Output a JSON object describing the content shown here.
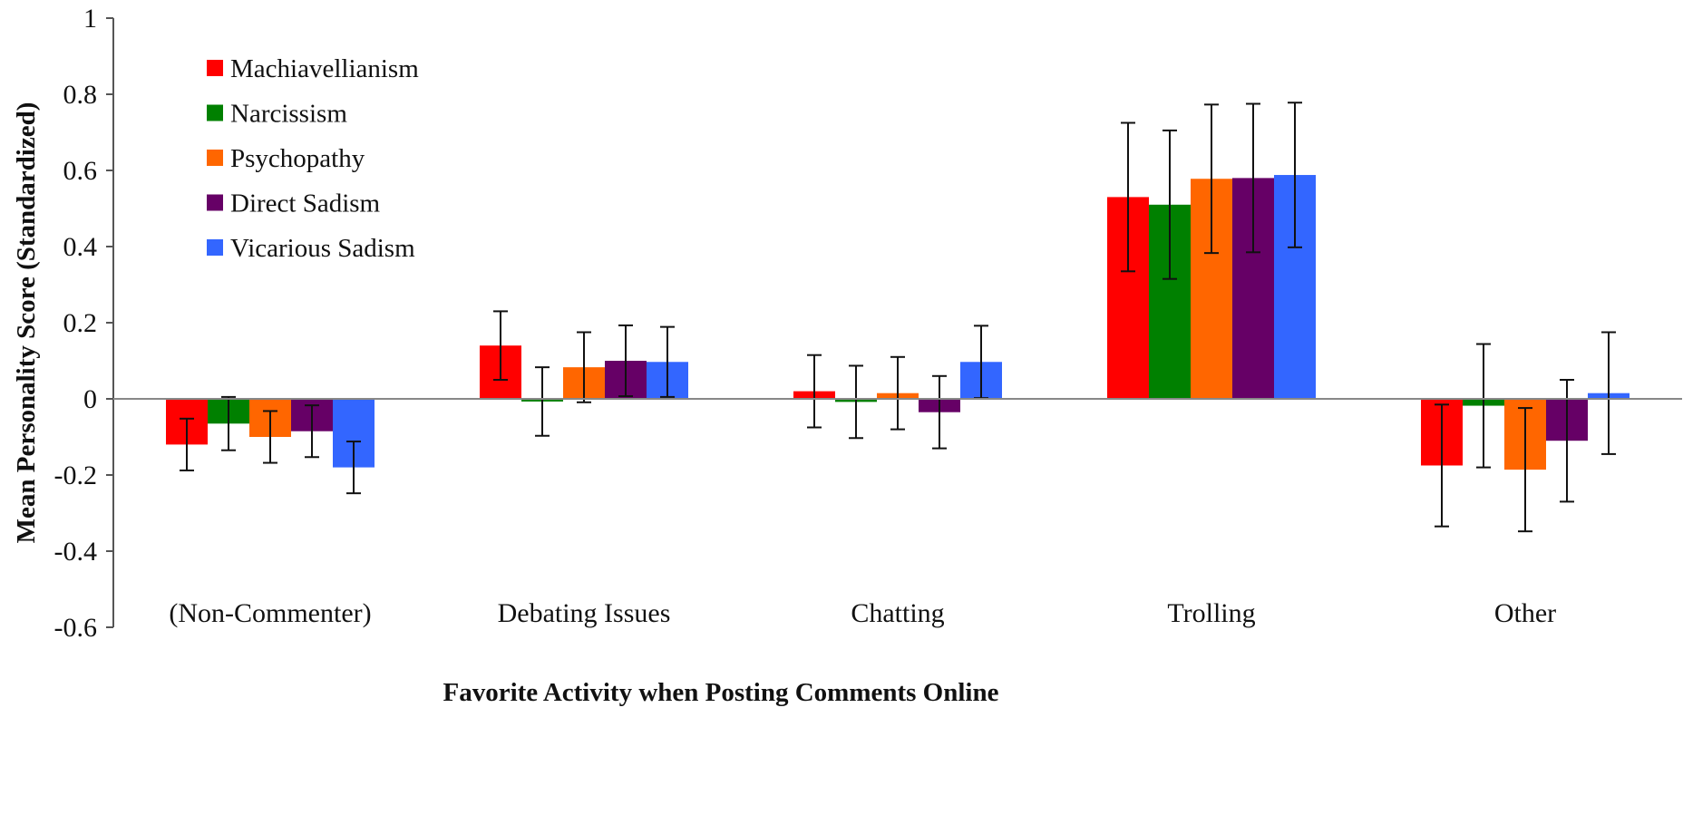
{
  "chart_data": {
    "type": "bar",
    "title": "",
    "xlabel": "Favorite Activity when Posting Comments Online",
    "ylabel": "Mean Personality Score (Standardized)",
    "ylim": [
      -0.6,
      1
    ],
    "yticks": [
      1,
      0.8,
      0.6,
      0.4,
      0.2,
      0,
      -0.2,
      -0.4,
      -0.6
    ],
    "ytick_labels": [
      "1",
      "0.8",
      "0.6",
      "0.4",
      "0.2",
      "0",
      "-0.2",
      "-0.4",
      "-0.6"
    ],
    "categories": [
      "(Non-Commenter)",
      "Debating Issues",
      "Chatting",
      "Trolling",
      "Other"
    ],
    "legend_position": "top-left",
    "grid": false,
    "series": [
      {
        "name": "Machiavellianism",
        "color": "#ff0000",
        "values": [
          -0.12,
          0.14,
          0.02,
          0.53,
          -0.175
        ],
        "errors": [
          0.068,
          0.09,
          0.095,
          0.195,
          0.16
        ]
      },
      {
        "name": "Narcissism",
        "color": "#008000",
        "values": [
          -0.065,
          -0.007,
          -0.008,
          0.51,
          -0.018
        ],
        "errors": [
          0.07,
          0.09,
          0.095,
          0.195,
          0.162
        ]
      },
      {
        "name": "Psychopathy",
        "color": "#ff6600",
        "values": [
          -0.1,
          0.083,
          0.015,
          0.578,
          -0.186
        ],
        "errors": [
          0.068,
          0.092,
          0.095,
          0.195,
          0.162
        ]
      },
      {
        "name": "Direct Sadism",
        "color": "#660066",
        "values": [
          -0.085,
          0.1,
          -0.035,
          0.58,
          -0.11
        ],
        "errors": [
          0.068,
          0.093,
          0.095,
          0.195,
          0.16
        ]
      },
      {
        "name": "Vicarious Sadism",
        "color": "#3366ff",
        "values": [
          -0.18,
          0.097,
          0.097,
          0.588,
          0.015
        ],
        "errors": [
          0.068,
          0.092,
          0.095,
          0.19,
          0.16
        ]
      }
    ]
  }
}
